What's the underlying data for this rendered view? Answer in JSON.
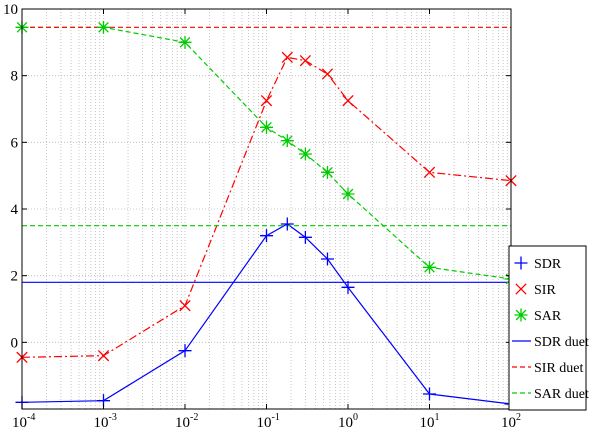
{
  "chart_data": {
    "type": "line",
    "title": "",
    "xlabel": "",
    "ylabel": "",
    "xscale": "log",
    "xlim": [
      0.0001,
      100
    ],
    "ylim": [
      -2,
      10
    ],
    "grid": true,
    "legend_position": "right",
    "x_ticks": [
      {
        "base": "10",
        "exp": "-4"
      },
      {
        "base": "10",
        "exp": "-3"
      },
      {
        "base": "10",
        "exp": "-2"
      },
      {
        "base": "10",
        "exp": "-1"
      },
      {
        "base": "10",
        "exp": "0"
      },
      {
        "base": "10",
        "exp": "1"
      },
      {
        "base": "10",
        "exp": "2"
      }
    ],
    "y_ticks": [
      "0",
      "2",
      "4",
      "6",
      "8",
      "10"
    ],
    "x": [
      0.0001,
      0.001,
      0.01,
      0.1,
      0.18,
      0.3,
      0.56,
      1,
      10,
      100
    ],
    "series": [
      {
        "name": "SDR",
        "color": "#0000ff",
        "marker": "plus",
        "dash": "solid",
        "values": [
          -1.8,
          -1.75,
          -0.25,
          3.2,
          3.55,
          3.15,
          2.5,
          1.65,
          -1.55,
          -1.85
        ]
      },
      {
        "name": "SIR",
        "color": "#ff0000",
        "marker": "x",
        "dash": "dashdot",
        "values": [
          -0.45,
          -0.4,
          1.1,
          7.25,
          8.55,
          8.45,
          8.05,
          7.25,
          5.1,
          4.85
        ]
      },
      {
        "name": "SAR",
        "color": "#00cc00",
        "marker": "star",
        "dash": "dashed",
        "values": [
          9.45,
          9.45,
          9.0,
          6.45,
          6.05,
          5.65,
          5.1,
          4.45,
          2.25,
          1.9
        ]
      },
      {
        "name": "SDR duet",
        "color": "#0000ff",
        "marker": "none",
        "dash": "solid",
        "constant": 1.8
      },
      {
        "name": "SIR duet",
        "color": "#ff0000",
        "marker": "none",
        "dash": "dashed",
        "constant": 9.45
      },
      {
        "name": "SAR duet",
        "color": "#00cc00",
        "marker": "none",
        "dash": "dashed",
        "constant": 3.5
      }
    ]
  }
}
